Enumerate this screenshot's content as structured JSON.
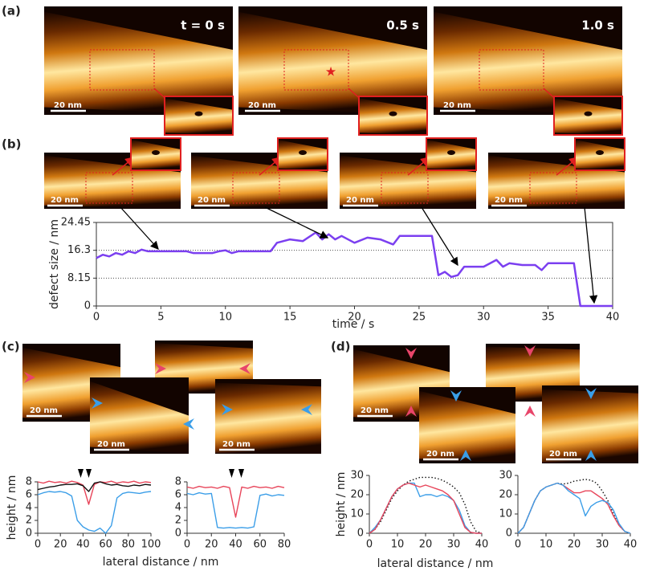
{
  "panel_a": {
    "label": "(a)",
    "images": [
      {
        "time": "t = 0 s",
        "scale": "20 nm"
      },
      {
        "time": "0.5 s",
        "scale": "20 nm"
      },
      {
        "time": "1.0 s",
        "scale": "20 nm"
      }
    ]
  },
  "panel_b": {
    "label": "(b)",
    "images": [
      {
        "scale": "20 nm"
      },
      {
        "scale": "20 nm"
      },
      {
        "scale": "20 nm"
      },
      {
        "scale": "20 nm"
      }
    ]
  },
  "panel_c": {
    "label": "(c)",
    "images": [
      {
        "scale": "20 nm"
      },
      {
        "scale": "20 nm"
      },
      {
        "scale": "20 nm"
      }
    ]
  },
  "panel_d": {
    "label": "(d)",
    "images": [
      {
        "scale": "20 nm"
      },
      {
        "scale": "20 nm"
      },
      {
        "scale": "20 nm"
      }
    ]
  },
  "chart_data": [
    {
      "type": "line",
      "xlabel": "time / s",
      "ylabel": "defect size / nm",
      "x": [
        0,
        0.5,
        1,
        1.5,
        2,
        2.5,
        3,
        3.5,
        4,
        5,
        6,
        7,
        7.5,
        8,
        9,
        9.5,
        10,
        10.5,
        11,
        12,
        13,
        13.5,
        14,
        15,
        16,
        17,
        17.5,
        18,
        18.5,
        19,
        20,
        21,
        22,
        23,
        23.5,
        24,
        25,
        26,
        26.5,
        27,
        27.5,
        28,
        28.5,
        30,
        31,
        31.5,
        32,
        33,
        34,
        34.5,
        35,
        36,
        37,
        37.5,
        40
      ],
      "series": [
        {
          "color": "#7b3ff0",
          "values": [
            14,
            15,
            14.5,
            15.5,
            15,
            16,
            15.5,
            16.5,
            16,
            16,
            16,
            16,
            15.5,
            15.5,
            15.5,
            16,
            16.3,
            15.5,
            16,
            16,
            16,
            16,
            18.5,
            19.5,
            19,
            21.5,
            19.5,
            21,
            19.5,
            20.5,
            18.5,
            20,
            19.5,
            18,
            20.5,
            20.5,
            20.5,
            20.5,
            9,
            10,
            8.5,
            9,
            11.5,
            11.5,
            13.5,
            11.5,
            12.5,
            12,
            12,
            10.5,
            12.5,
            12.5,
            12.5,
            0,
            0
          ]
        }
      ],
      "xlim": [
        0,
        40
      ],
      "xticks": [
        0,
        5,
        10,
        15,
        20,
        25,
        30,
        35,
        40
      ],
      "ylim": [
        0,
        24.45
      ],
      "yticks": [
        0,
        8.15,
        16.3,
        24.45
      ],
      "grid": true,
      "frame": "box"
    },
    {
      "type": "line",
      "xlabel": "lateral distance / nm",
      "ylabel": "height / nm",
      "x": [
        0,
        5,
        10,
        15,
        20,
        25,
        30,
        35,
        40,
        45,
        50,
        55,
        60,
        65,
        70,
        75,
        80,
        85,
        90,
        95,
        100
      ],
      "series": [
        {
          "color": "#e8455a",
          "values": [
            8,
            7.8,
            8.1,
            7.9,
            8,
            7.8,
            8.1,
            7.9,
            7.5,
            4.5,
            7.6,
            8,
            7.9,
            8.1,
            7.8,
            8,
            7.9,
            8.1,
            7.8,
            8,
            7.9
          ]
        },
        {
          "color": "#111111",
          "values": [
            6.8,
            7,
            7.2,
            7.3,
            7.5,
            7.6,
            7.6,
            7.7,
            7.4,
            6.5,
            7.8,
            8,
            7.7,
            7.5,
            7.6,
            7.4,
            7.3,
            7.5,
            7.4,
            7.6,
            7.5
          ]
        },
        {
          "color": "#3b9ee8",
          "values": [
            6,
            6.3,
            6.5,
            6.4,
            6.5,
            6.3,
            5.8,
            2,
            1,
            0.5,
            0.3,
            0.8,
            0,
            1.2,
            5.5,
            6.2,
            6.4,
            6.3,
            6.2,
            6.4,
            6.5
          ]
        }
      ],
      "xlim": [
        0,
        100
      ],
      "xticks": [
        0,
        20,
        40,
        60,
        80,
        100
      ],
      "ylim": [
        0,
        8
      ],
      "yticks": [
        0,
        2,
        4,
        6,
        8
      ],
      "grid": false,
      "frame": "axes"
    },
    {
      "type": "line",
      "x": [
        0,
        5,
        10,
        15,
        20,
        25,
        30,
        35,
        40,
        45,
        50,
        55,
        60,
        65,
        70,
        75,
        80
      ],
      "series": [
        {
          "color": "#e8455a",
          "values": [
            7.2,
            7,
            7.3,
            7.1,
            7.2,
            7,
            7.3,
            7.1,
            2.5,
            7.2,
            7,
            7.3,
            7.1,
            7.2,
            7,
            7.3,
            7.1
          ]
        },
        {
          "color": "#3b9ee8",
          "values": [
            6.2,
            6,
            6.3,
            6.1,
            6.2,
            0.9,
            0.8,
            0.9,
            0.8,
            0.9,
            0.8,
            1,
            5.9,
            6.1,
            5.8,
            6,
            5.9
          ]
        }
      ],
      "xlim": [
        0,
        80
      ],
      "xticks": [
        0,
        20,
        40,
        60,
        80
      ],
      "ylim": [
        0,
        8
      ],
      "yticks": [
        0,
        2,
        4,
        6,
        8
      ],
      "grid": false,
      "frame": "axes"
    },
    {
      "type": "line",
      "xlabel": "lateral distance / nm",
      "ylabel": "height / nm",
      "x": [
        0,
        2,
        4,
        6,
        8,
        10,
        12,
        14,
        16,
        18,
        20,
        22,
        24,
        26,
        28,
        30,
        32,
        34,
        36,
        38,
        40
      ],
      "series": [
        {
          "color": "#111111",
          "style": "dotted",
          "values": [
            0,
            2,
            6,
            12,
            18,
            22,
            25,
            27,
            28,
            29,
            29,
            29,
            28.5,
            27.5,
            26,
            24,
            21,
            15,
            6,
            1,
            0
          ]
        },
        {
          "color": "#3b9ee8",
          "values": [
            0,
            3,
            7,
            13,
            19,
            23,
            25,
            26,
            26,
            19,
            20,
            20,
            19,
            20,
            19,
            17,
            12,
            4,
            0.5,
            0,
            0
          ]
        },
        {
          "color": "#e8455a",
          "values": [
            0,
            2,
            7,
            13,
            19,
            23,
            25,
            26,
            25,
            24,
            25,
            24,
            23,
            22,
            20,
            17,
            10,
            3,
            0.5,
            0,
            0
          ]
        }
      ],
      "xlim": [
        0,
        40
      ],
      "xticks": [
        0,
        10,
        20,
        30,
        40
      ],
      "ylim": [
        0,
        30
      ],
      "yticks": [
        0,
        10,
        20,
        30
      ],
      "grid": false,
      "frame": "axes"
    },
    {
      "type": "line",
      "x": [
        0,
        2,
        4,
        6,
        8,
        10,
        12,
        14,
        16,
        18,
        20,
        22,
        24,
        26,
        28,
        30,
        32,
        34,
        36,
        38,
        40
      ],
      "series": [
        {
          "color": "#111111",
          "style": "dotted",
          "values": [
            0,
            3,
            10,
            17,
            22,
            24,
            25,
            26,
            25.5,
            26,
            27,
            27.5,
            28,
            27.5,
            26,
            22,
            17,
            10,
            4,
            1,
            0
          ]
        },
        {
          "color": "#e8455a",
          "values": [
            0,
            3,
            10,
            17,
            22,
            24,
            25,
            26,
            25,
            23,
            21,
            21,
            22,
            22,
            20,
            18,
            15,
            9,
            4,
            1,
            0
          ]
        },
        {
          "color": "#3b9ee8",
          "values": [
            0,
            3,
            10,
            17,
            22,
            24,
            25,
            26,
            25,
            22,
            20,
            18,
            9,
            14,
            16,
            17,
            16,
            12,
            5,
            1,
            0
          ]
        }
      ],
      "xlim": [
        0,
        40
      ],
      "xticks": [
        0,
        10,
        20,
        30,
        40
      ],
      "ylim": [
        0,
        30
      ],
      "yticks": [
        0,
        10,
        20,
        30
      ],
      "grid": false,
      "frame": "axes"
    }
  ]
}
